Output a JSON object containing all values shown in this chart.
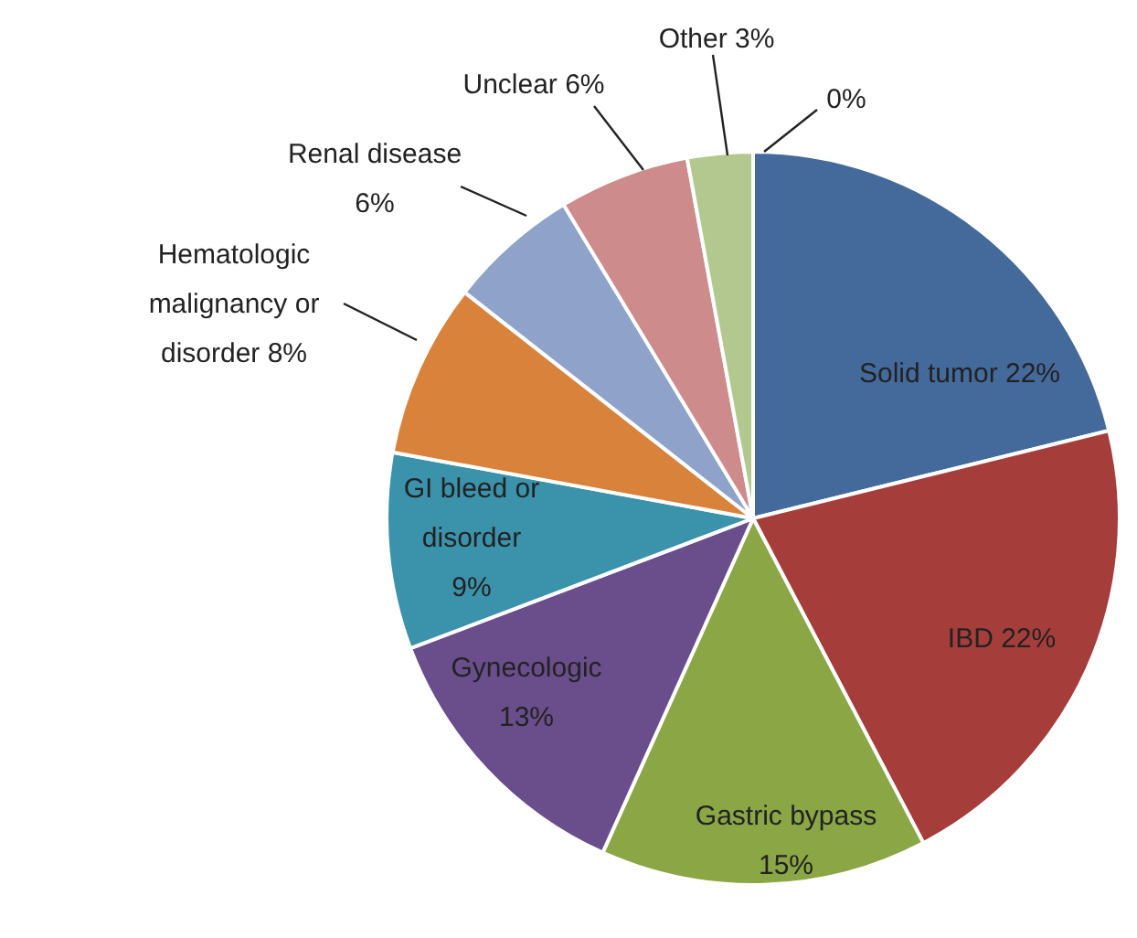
{
  "chart_data": {
    "type": "pie",
    "categories": [
      "Solid tumor",
      "IBD",
      "Gastric bypass",
      "Gynecologic",
      "GI bleed or disorder",
      "Hematologic malignancy or disorder",
      "Renal disease",
      "Unclear",
      "Other",
      null
    ],
    "values": [
      22,
      22,
      15,
      13,
      9,
      8,
      6,
      6,
      3,
      0
    ],
    "value_labels": [
      "22%",
      "22%",
      "15%",
      "13%",
      "9%",
      "8%",
      "6%",
      "6%",
      "3%",
      "0%"
    ],
    "colors": [
      "#44699b",
      "#a53d3b",
      "#8aa645",
      "#6a4d8b",
      "#3b92ab",
      "#d9823b",
      "#8fa2ca",
      "#cd8b8b",
      "#b3c88f",
      "#4f81bd"
    ],
    "legend": false
  }
}
